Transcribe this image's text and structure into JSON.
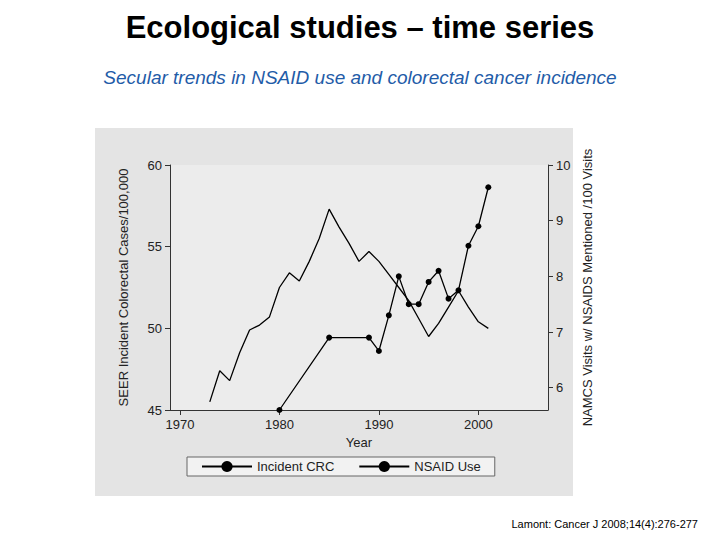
{
  "slide": {
    "title": "Ecological studies – time series",
    "subtitle": "Secular trends in NSAID use and colorectal cancer incidence",
    "citation": "Lamont: Cancer J 2008;14(4):276-277"
  },
  "chart_data": {
    "type": "line",
    "x_label": "Year",
    "y_label": "SEER Incident Colorectal Cases/100,000",
    "y2_label": "NAMCS Visits w/ NSAIDS Mentioned /100 Visits",
    "xlim": [
      1969,
      2007
    ],
    "xticks": [
      1970,
      1980,
      1990,
      2000
    ],
    "ylim": [
      45,
      60
    ],
    "yticks": [
      45,
      50,
      55,
      60
    ],
    "y2lim": [
      5.6,
      10
    ],
    "y2ticks": [
      6,
      7,
      8,
      9,
      10
    ],
    "legend": "bottom",
    "grid": false,
    "series": [
      {
        "name": "Incident CRC",
        "color": "#000000",
        "marker": "none",
        "line_style": "solid",
        "x": [
          1973,
          1974,
          1975,
          1976,
          1977,
          1978,
          1979,
          1980,
          1981,
          1982,
          1983,
          1984,
          1985,
          1986,
          1987,
          1988,
          1989,
          1990,
          1991,
          1992,
          1993,
          1994,
          1995,
          1996,
          1997,
          1998,
          1999,
          2000,
          2001
        ],
        "values": [
          45.5,
          47.4,
          46.8,
          48.5,
          49.9,
          50.2,
          50.7,
          52.5,
          53.4,
          52.9,
          54.1,
          55.5,
          57.3,
          56.2,
          55.2,
          54.1,
          54.7,
          54.1,
          53.3,
          52.5,
          51.7,
          50.6,
          49.5,
          50.3,
          51.3,
          52.3,
          51.3,
          50.4,
          50.0
        ]
      },
      {
        "name": "NSAID Use",
        "color": "#000000",
        "marker": "circle",
        "line_style": "solid",
        "axis": "y2",
        "x": [
          1980,
          1985,
          1989,
          1990,
          1991,
          1992,
          1993,
          1994,
          1995,
          1996,
          1997,
          1998,
          1999,
          2000,
          2001
        ],
        "values": [
          5.6,
          6.9,
          6.9,
          6.66,
          7.3,
          8.0,
          7.5,
          7.5,
          7.9,
          8.1,
          7.6,
          7.75,
          8.55,
          8.9,
          9.6
        ]
      }
    ]
  }
}
